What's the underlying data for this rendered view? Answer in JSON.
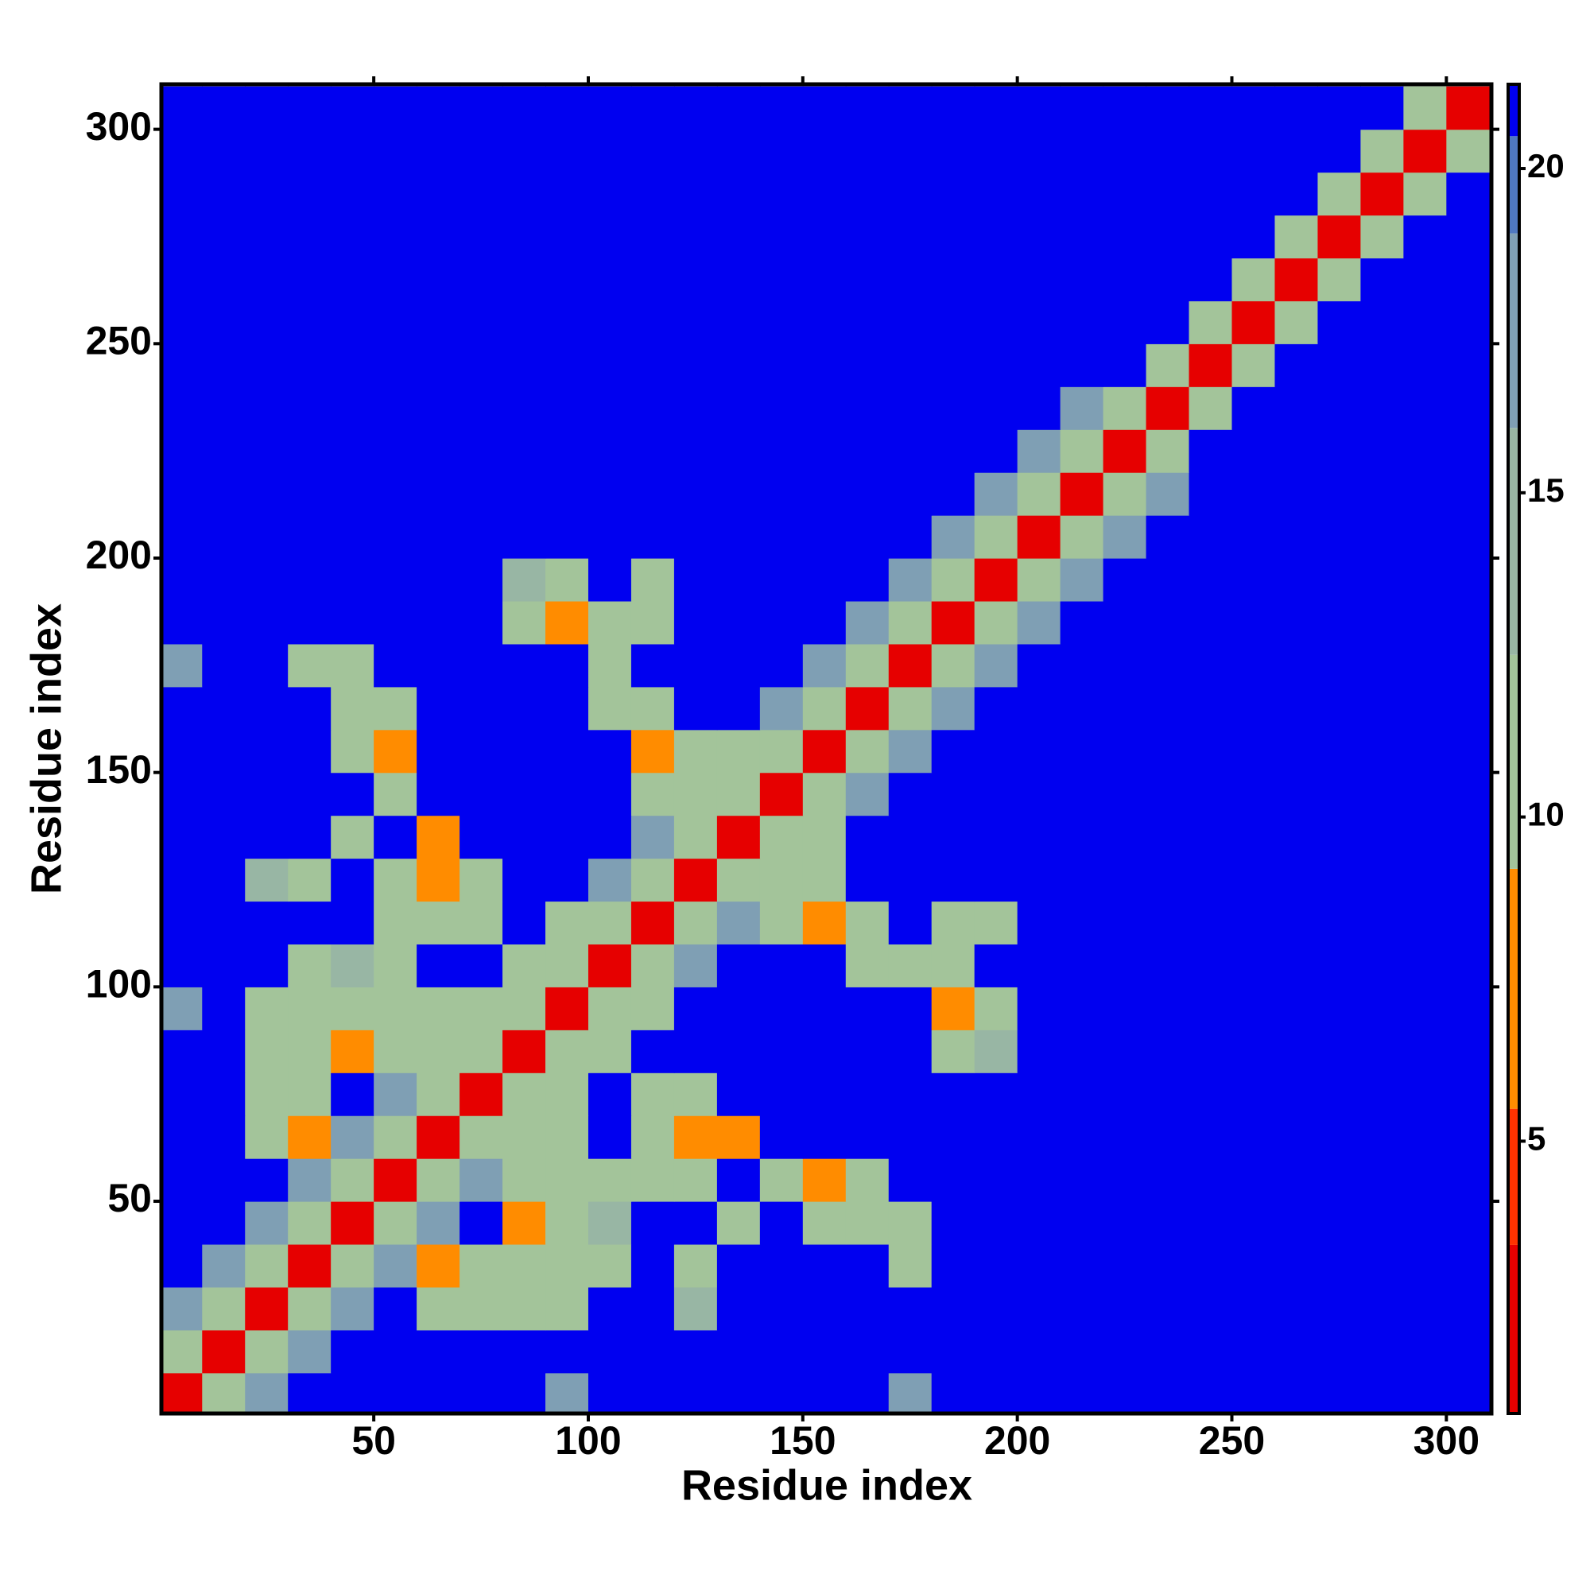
{
  "chart_data": {
    "type": "heatmap",
    "x_label": "Residue index",
    "y_label": "Residue index",
    "x": [
      5,
      15,
      25,
      35,
      45,
      55,
      65,
      75,
      85,
      95,
      105,
      115,
      125,
      135,
      145,
      155,
      165,
      175,
      185,
      195,
      205,
      215,
      225,
      235,
      245,
      255,
      265,
      275,
      285,
      295,
      305
    ],
    "y": [
      5,
      15,
      25,
      35,
      45,
      55,
      65,
      75,
      85,
      95,
      105,
      115,
      125,
      135,
      145,
      155,
      165,
      175,
      185,
      195,
      205,
      215,
      225,
      235,
      245,
      255,
      265,
      275,
      285,
      295,
      305
    ],
    "z": [
      [
        3,
        11,
        18,
        21,
        21,
        21,
        21,
        21,
        21,
        17,
        21,
        21,
        21,
        21,
        21,
        21,
        21,
        17,
        21,
        21,
        21,
        21,
        21,
        21,
        21,
        21,
        21,
        21,
        21,
        21,
        21
      ],
      [
        11,
        3,
        11,
        18,
        21,
        21,
        21,
        21,
        21,
        21,
        21,
        21,
        21,
        21,
        21,
        21,
        21,
        21,
        21,
        21,
        21,
        21,
        21,
        21,
        21,
        21,
        21,
        21,
        21,
        21,
        21
      ],
      [
        18,
        11,
        3,
        11,
        18,
        21,
        12,
        11,
        11,
        11,
        21,
        21,
        13,
        21,
        21,
        21,
        21,
        21,
        21,
        21,
        21,
        21,
        21,
        21,
        21,
        21,
        21,
        21,
        21,
        21,
        21
      ],
      [
        21,
        18,
        11,
        3,
        11,
        18,
        9,
        12,
        11,
        12,
        12,
        21,
        12,
        21,
        21,
        21,
        21,
        12,
        21,
        21,
        21,
        21,
        21,
        21,
        21,
        21,
        21,
        21,
        21,
        21,
        21
      ],
      [
        21,
        21,
        18,
        11,
        3,
        11,
        18,
        21,
        9,
        11,
        13,
        21,
        21,
        12,
        21,
        11,
        11,
        12,
        21,
        21,
        21,
        21,
        21,
        21,
        21,
        21,
        21,
        21,
        21,
        21,
        21
      ],
      [
        21,
        21,
        21,
        18,
        11,
        3,
        11,
        18,
        11,
        11,
        11,
        12,
        11,
        21,
        11,
        9,
        12,
        21,
        21,
        21,
        21,
        21,
        21,
        21,
        21,
        21,
        21,
        21,
        21,
        21,
        21
      ],
      [
        21,
        21,
        12,
        9,
        18,
        11,
        3,
        11,
        11,
        11,
        21,
        11,
        9,
        9,
        21,
        21,
        21,
        21,
        21,
        21,
        21,
        21,
        21,
        21,
        21,
        21,
        21,
        21,
        21,
        21,
        21
      ],
      [
        21,
        21,
        11,
        12,
        21,
        18,
        11,
        3,
        11,
        11,
        21,
        12,
        10,
        21,
        21,
        21,
        21,
        21,
        21,
        21,
        21,
        21,
        21,
        21,
        21,
        21,
        21,
        21,
        21,
        21,
        21
      ],
      [
        21,
        21,
        11,
        11,
        9,
        11,
        11,
        11,
        3,
        11,
        10,
        21,
        21,
        21,
        21,
        21,
        21,
        21,
        11,
        13,
        21,
        21,
        21,
        21,
        21,
        21,
        21,
        21,
        21,
        21,
        21
      ],
      [
        17,
        21,
        11,
        12,
        11,
        11,
        11,
        11,
        11,
        3,
        11,
        11,
        21,
        21,
        21,
        21,
        21,
        21,
        9,
        12,
        21,
        21,
        21,
        21,
        21,
        21,
        21,
        21,
        21,
        21,
        21
      ],
      [
        21,
        21,
        21,
        12,
        13,
        11,
        21,
        21,
        10,
        11,
        3,
        11,
        18,
        21,
        21,
        21,
        10,
        12,
        11,
        21,
        21,
        21,
        21,
        21,
        21,
        21,
        21,
        21,
        21,
        21,
        21
      ],
      [
        21,
        21,
        21,
        21,
        21,
        12,
        11,
        12,
        21,
        11,
        11,
        3,
        11,
        18,
        11,
        9,
        12,
        21,
        10,
        12,
        21,
        21,
        21,
        21,
        21,
        21,
        21,
        21,
        21,
        21,
        21
      ],
      [
        21,
        21,
        13,
        12,
        21,
        11,
        9,
        10,
        21,
        21,
        18,
        11,
        3,
        11,
        10,
        11,
        21,
        21,
        21,
        21,
        21,
        21,
        21,
        21,
        21,
        21,
        21,
        21,
        21,
        21,
        21
      ],
      [
        21,
        21,
        21,
        21,
        12,
        21,
        9,
        21,
        21,
        21,
        21,
        18,
        11,
        3,
        11,
        12,
        21,
        21,
        21,
        21,
        21,
        21,
        21,
        21,
        21,
        21,
        21,
        21,
        21,
        21,
        21
      ],
      [
        21,
        21,
        21,
        21,
        21,
        11,
        21,
        21,
        21,
        21,
        21,
        11,
        10,
        11,
        3,
        11,
        18,
        21,
        21,
        21,
        21,
        21,
        21,
        21,
        21,
        21,
        21,
        21,
        21,
        21,
        21
      ],
      [
        21,
        21,
        21,
        21,
        11,
        9,
        21,
        21,
        21,
        21,
        21,
        9,
        11,
        12,
        11,
        3,
        11,
        18,
        21,
        21,
        21,
        21,
        21,
        21,
        21,
        21,
        21,
        21,
        21,
        21,
        21
      ],
      [
        21,
        21,
        21,
        21,
        11,
        12,
        21,
        21,
        21,
        21,
        10,
        12,
        21,
        21,
        18,
        11,
        3,
        11,
        18,
        21,
        21,
        21,
        21,
        21,
        21,
        21,
        21,
        21,
        21,
        21,
        21
      ],
      [
        17,
        21,
        21,
        12,
        12,
        21,
        21,
        21,
        21,
        21,
        12,
        21,
        21,
        21,
        21,
        18,
        11,
        3,
        11,
        18,
        21,
        21,
        21,
        21,
        21,
        21,
        21,
        21,
        21,
        21,
        21
      ],
      [
        21,
        21,
        21,
        21,
        21,
        21,
        21,
        21,
        11,
        9,
        11,
        10,
        21,
        21,
        21,
        21,
        18,
        11,
        3,
        11,
        18,
        21,
        21,
        21,
        21,
        21,
        21,
        21,
        21,
        21,
        21
      ],
      [
        21,
        21,
        21,
        21,
        21,
        21,
        21,
        21,
        13,
        12,
        21,
        12,
        21,
        21,
        21,
        21,
        21,
        18,
        11,
        3,
        11,
        18,
        21,
        21,
        21,
        21,
        21,
        21,
        21,
        21,
        21
      ],
      [
        21,
        21,
        21,
        21,
        21,
        21,
        21,
        21,
        21,
        21,
        21,
        21,
        21,
        21,
        21,
        21,
        21,
        21,
        18,
        11,
        3,
        11,
        18,
        21,
        21,
        21,
        21,
        21,
        21,
        21,
        21
      ],
      [
        21,
        21,
        21,
        21,
        21,
        21,
        21,
        21,
        21,
        21,
        21,
        21,
        21,
        21,
        21,
        21,
        21,
        21,
        21,
        18,
        11,
        3,
        11,
        18,
        21,
        21,
        21,
        21,
        21,
        21,
        21
      ],
      [
        21,
        21,
        21,
        21,
        21,
        21,
        21,
        21,
        21,
        21,
        21,
        21,
        21,
        21,
        21,
        21,
        21,
        21,
        21,
        21,
        18,
        11,
        3,
        11,
        21,
        21,
        21,
        21,
        21,
        21,
        21
      ],
      [
        21,
        21,
        21,
        21,
        21,
        21,
        21,
        21,
        21,
        21,
        21,
        21,
        21,
        21,
        21,
        21,
        21,
        21,
        21,
        21,
        21,
        18,
        11,
        3,
        12,
        21,
        21,
        21,
        21,
        21,
        21
      ],
      [
        21,
        21,
        21,
        21,
        21,
        21,
        21,
        21,
        21,
        21,
        21,
        21,
        21,
        21,
        21,
        21,
        21,
        21,
        21,
        21,
        21,
        21,
        21,
        12,
        3,
        12,
        21,
        21,
        21,
        21,
        21
      ],
      [
        21,
        21,
        21,
        21,
        21,
        21,
        21,
        21,
        21,
        21,
        21,
        21,
        21,
        21,
        21,
        21,
        21,
        21,
        21,
        21,
        21,
        21,
        21,
        21,
        12,
        3,
        12,
        21,
        21,
        21,
        21
      ],
      [
        21,
        21,
        21,
        21,
        21,
        21,
        21,
        21,
        21,
        21,
        21,
        21,
        21,
        21,
        21,
        21,
        21,
        21,
        21,
        21,
        21,
        21,
        21,
        21,
        21,
        12,
        3,
        12,
        21,
        21,
        21
      ],
      [
        21,
        21,
        21,
        21,
        21,
        21,
        21,
        21,
        21,
        21,
        21,
        21,
        21,
        21,
        21,
        21,
        21,
        21,
        21,
        21,
        21,
        21,
        21,
        21,
        21,
        21,
        12,
        3,
        12,
        21,
        21
      ],
      [
        21,
        21,
        21,
        21,
        21,
        21,
        21,
        21,
        21,
        21,
        21,
        21,
        21,
        21,
        21,
        21,
        21,
        21,
        21,
        21,
        21,
        21,
        21,
        21,
        21,
        21,
        21,
        12,
        3,
        12,
        21
      ],
      [
        21,
        21,
        21,
        21,
        21,
        21,
        21,
        21,
        21,
        21,
        21,
        21,
        21,
        21,
        21,
        21,
        21,
        21,
        21,
        21,
        21,
        21,
        21,
        21,
        21,
        21,
        21,
        21,
        12,
        3,
        12
      ],
      [
        21,
        21,
        21,
        21,
        21,
        21,
        21,
        21,
        21,
        21,
        21,
        21,
        21,
        21,
        21,
        21,
        21,
        21,
        21,
        21,
        21,
        21,
        21,
        21,
        21,
        21,
        21,
        21,
        21,
        12,
        3
      ]
    ],
    "xlim": [
      0.5,
      310.5
    ],
    "ylim": [
      0.5,
      310.5
    ],
    "xticks": [
      50,
      100,
      150,
      200,
      250,
      300
    ],
    "yticks": [
      50,
      100,
      150,
      200,
      250,
      300
    ],
    "zlim": [
      0.8,
      21.3
    ],
    "zticks": [
      5,
      10,
      15,
      20
    ],
    "colorscale": [
      {
        "max": 3.4,
        "color": "#e60000"
      },
      {
        "max": 5.5,
        "color": "#ff3300"
      },
      {
        "max": 9.2,
        "color": "#ff8c00"
      },
      {
        "max": 12.5,
        "color": "#a3c49a"
      },
      {
        "max": 16,
        "color": "#98b6a4"
      },
      {
        "max": 19,
        "color": "#7f9fb4"
      },
      {
        "max": 20.5,
        "color": "#4f78c0"
      },
      {
        "max": 21.3,
        "color": "#0000f0"
      }
    ]
  }
}
